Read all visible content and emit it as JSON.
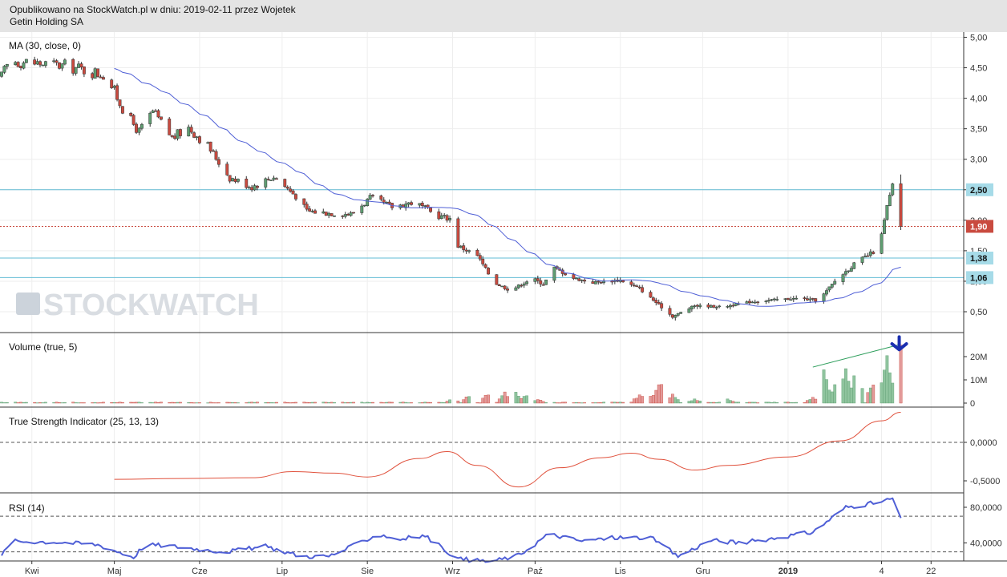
{
  "header": {
    "line1": "Opublikowano na StockWatch.pl w dniu: 2019-02-11 przez Wojetek",
    "line2": "Getin Holding SA"
  },
  "watermark": "STOCKWATCH",
  "colors": {
    "up": "#5f9e72",
    "down": "#c94a3f",
    "ma": "#4f5fd6",
    "tsi": "#e0513c",
    "rsi": "#4f5fd6",
    "hline": "#62bcd4",
    "current": "#c94a3f",
    "arrow": "#1a2fb0"
  },
  "chart_data": [
    {
      "type": "candlestick",
      "title": "MA (30, close, 0)",
      "ylim": [
        0.2,
        5.05
      ],
      "yticks": [
        0.5,
        1.0,
        1.5,
        2.0,
        2.5,
        3.0,
        3.5,
        4.0,
        4.5,
        5.0
      ],
      "ytick_labels": [
        "0,50",
        "1,00",
        "1,50",
        "2,00",
        "2,50",
        "3,00",
        "3,50",
        "4,00",
        "4,50",
        "5,00"
      ],
      "x_labels": [
        "Kwi",
        "Maj",
        "Cze",
        "Lip",
        "Sie",
        "Wrz",
        "Paź",
        "Lis",
        "Gru",
        "2019",
        "4",
        "22"
      ],
      "x_label_dates": [
        "2018-04-01",
        "2018-05-01",
        "2018-06-01",
        "2018-07-01",
        "2018-08-01",
        "2018-09-01",
        "2018-10-01",
        "2018-11-01",
        "2018-12-01",
        "2019-01-01",
        "2019-02-04",
        "2019-02-22"
      ],
      "x_range": [
        "2018-03-21",
        "2019-02-26"
      ],
      "price_path": [
        [
          "2018-03-21",
          4.35
        ],
        [
          "2018-03-24",
          4.62
        ],
        [
          "2018-04-02",
          4.58
        ],
        [
          "2018-04-15",
          4.52
        ],
        [
          "2018-04-28",
          4.38
        ],
        [
          "2018-05-05",
          3.75
        ],
        [
          "2018-05-10",
          3.45
        ],
        [
          "2018-05-15",
          3.78
        ],
        [
          "2018-05-22",
          3.35
        ],
        [
          "2018-05-28",
          3.52
        ],
        [
          "2018-06-04",
          3.22
        ],
        [
          "2018-06-12",
          2.7
        ],
        [
          "2018-06-20",
          2.55
        ],
        [
          "2018-06-28",
          2.72
        ],
        [
          "2018-07-06",
          2.4
        ],
        [
          "2018-07-10",
          2.15
        ],
        [
          "2018-07-18",
          2.12
        ],
        [
          "2018-07-26",
          2.1
        ],
        [
          "2018-08-02",
          2.36
        ],
        [
          "2018-08-10",
          2.22
        ],
        [
          "2018-08-18",
          2.3
        ],
        [
          "2018-08-26",
          2.08
        ],
        [
          "2018-09-01",
          2.02
        ],
        [
          "2018-09-03",
          1.58
        ],
        [
          "2018-09-10",
          1.42
        ],
        [
          "2018-09-16",
          0.98
        ],
        [
          "2018-09-22",
          0.85
        ],
        [
          "2018-09-30",
          1.05
        ],
        [
          "2018-10-04",
          0.95
        ],
        [
          "2018-10-08",
          1.22
        ],
        [
          "2018-10-15",
          1.05
        ],
        [
          "2018-10-22",
          0.98
        ],
        [
          "2018-11-01",
          1.02
        ],
        [
          "2018-11-08",
          0.88
        ],
        [
          "2018-11-14",
          0.65
        ],
        [
          "2018-11-20",
          0.42
        ],
        [
          "2018-11-28",
          0.6
        ],
        [
          "2018-12-08",
          0.58
        ],
        [
          "2018-12-18",
          0.66
        ],
        [
          "2018-12-28",
          0.7
        ],
        [
          "2019-01-05",
          0.72
        ],
        [
          "2019-01-12",
          0.68
        ],
        [
          "2019-01-18",
          1.0
        ],
        [
          "2019-01-25",
          1.28
        ],
        [
          "2019-02-01",
          1.48
        ],
        [
          "2019-02-04",
          1.75
        ],
        [
          "2019-02-06",
          2.22
        ],
        [
          "2019-02-08",
          2.55
        ],
        [
          "2019-02-11",
          1.9
        ]
      ],
      "series": [
        {
          "name": "MA (30, close, 0)",
          "period": 30
        }
      ],
      "horizontal_lines": [
        {
          "value": 2.5,
          "label": "2,50"
        },
        {
          "value": 1.9,
          "label": "1,90",
          "current": true
        },
        {
          "value": 1.38,
          "label": "1,38"
        },
        {
          "value": 1.06,
          "label": "1,06"
        }
      ]
    },
    {
      "type": "bar",
      "title": "Volume (true, 5)",
      "ylim": [
        0,
        26
      ],
      "yticks": [
        0,
        10,
        20
      ],
      "ytick_labels": [
        "0",
        "10M",
        "20M"
      ],
      "spikes": [
        [
          "2018-09-01",
          2
        ],
        [
          "2018-09-07",
          4
        ],
        [
          "2018-09-14",
          4.5
        ],
        [
          "2018-09-20",
          5
        ],
        [
          "2018-09-24",
          5
        ],
        [
          "2018-09-28",
          4
        ],
        [
          "2018-10-02",
          2
        ],
        [
          "2018-11-08",
          4
        ],
        [
          "2018-11-14",
          6
        ],
        [
          "2018-11-16",
          11
        ],
        [
          "2018-11-20",
          4
        ],
        [
          "2018-11-28",
          2
        ],
        [
          "2018-12-10",
          2
        ],
        [
          "2019-01-10",
          3
        ],
        [
          "2019-01-14",
          15
        ],
        [
          "2019-01-18",
          9
        ],
        [
          "2019-01-22",
          16
        ],
        [
          "2019-01-26",
          16
        ],
        [
          "2019-02-01",
          11
        ],
        [
          "2019-02-06",
          24
        ],
        [
          "2019-02-11",
          25
        ]
      ]
    },
    {
      "type": "line",
      "title": "True Strength Indicator (25, 13, 13)",
      "ylim": [
        -0.62,
        0.42
      ],
      "yticks": [
        0.0,
        -0.5
      ],
      "ytick_labels": [
        "0,0000",
        "-0,5000"
      ],
      "series": [
        {
          "name": "True Strength Indicator (25, 13, 13)",
          "points": [
            [
              "2018-05-01",
              -0.48
            ],
            [
              "2018-05-25",
              -0.47
            ],
            [
              "2018-06-20",
              -0.46
            ],
            [
              "2018-07-05",
              -0.38
            ],
            [
              "2018-07-20",
              -0.4
            ],
            [
              "2018-08-01",
              -0.45
            ],
            [
              "2018-08-20",
              -0.21
            ],
            [
              "2018-08-30",
              -0.12
            ],
            [
              "2018-09-10",
              -0.3
            ],
            [
              "2018-09-25",
              -0.58
            ],
            [
              "2018-10-10",
              -0.33
            ],
            [
              "2018-10-25",
              -0.2
            ],
            [
              "2018-11-05",
              -0.14
            ],
            [
              "2018-11-15",
              -0.22
            ],
            [
              "2018-11-28",
              -0.36
            ],
            [
              "2018-12-10",
              -0.3
            ],
            [
              "2019-01-01",
              -0.19
            ],
            [
              "2019-01-20",
              0.02
            ],
            [
              "2019-02-04",
              0.28
            ],
            [
              "2019-02-11",
              0.39
            ]
          ]
        }
      ]
    },
    {
      "type": "line",
      "title": "RSI (14)",
      "ylim": [
        20,
        94
      ],
      "yticks": [
        80,
        40
      ],
      "ytick_labels": [
        "80,0000",
        "40,0000"
      ],
      "dashed_levels": [
        70,
        30
      ],
      "series": [
        {
          "name": "RSI (14)",
          "points": [
            [
              "2018-03-21",
              25
            ],
            [
              "2018-03-24",
              42
            ],
            [
              "2018-04-10",
              41
            ],
            [
              "2018-04-25",
              38
            ],
            [
              "2018-05-08",
              24
            ],
            [
              "2018-05-12",
              38
            ],
            [
              "2018-05-20",
              37
            ],
            [
              "2018-06-10",
              30
            ],
            [
              "2018-06-25",
              36
            ],
            [
              "2018-07-08",
              25
            ],
            [
              "2018-07-18",
              25
            ],
            [
              "2018-07-25",
              34
            ],
            [
              "2018-08-05",
              50
            ],
            [
              "2018-08-12",
              44
            ],
            [
              "2018-08-22",
              48
            ],
            [
              "2018-09-03",
              22
            ],
            [
              "2018-09-15",
              19
            ],
            [
              "2018-09-25",
              26
            ],
            [
              "2018-10-06",
              50
            ],
            [
              "2018-10-18",
              42
            ],
            [
              "2018-10-30",
              46
            ],
            [
              "2018-11-12",
              46
            ],
            [
              "2018-11-22",
              25
            ],
            [
              "2018-12-04",
              43
            ],
            [
              "2018-12-15",
              40
            ],
            [
              "2018-12-28",
              46
            ],
            [
              "2019-01-10",
              52
            ],
            [
              "2019-01-22",
              80
            ],
            [
              "2019-02-04",
              86
            ],
            [
              "2019-02-08",
              90
            ],
            [
              "2019-02-11",
              68
            ]
          ]
        }
      ]
    }
  ]
}
